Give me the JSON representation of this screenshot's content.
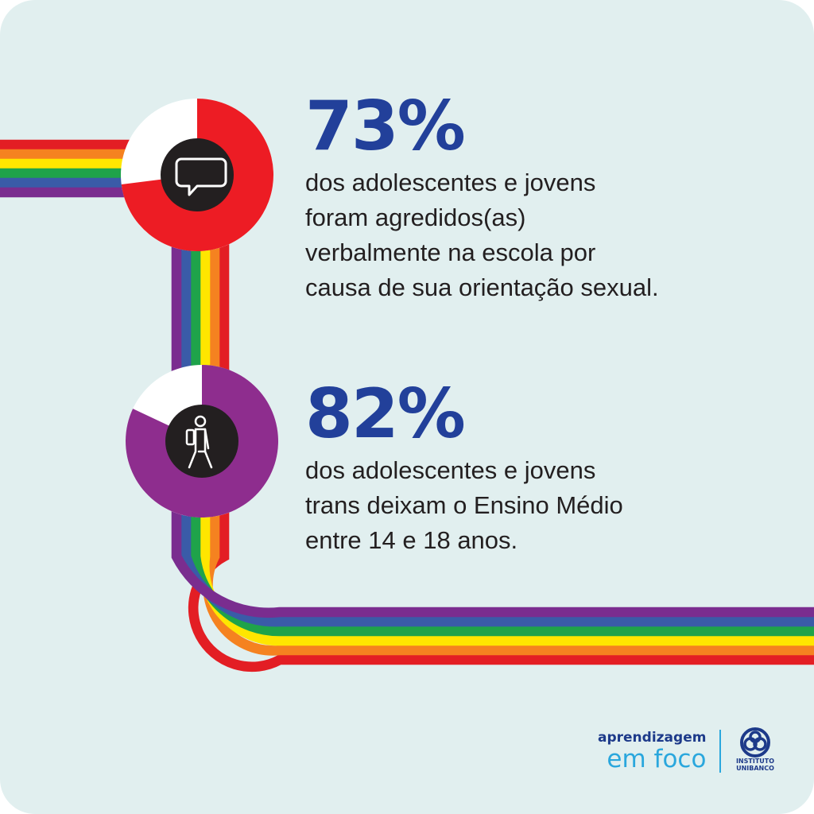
{
  "chart_data": [
    {
      "type": "pie",
      "value": 73,
      "label": "73%",
      "description": "dos adolescentes e jovens\nforam agredidos(as)\nverbalmente na escola por\ncausa de sua orientação sexual.",
      "fill_color": "#ed1c24",
      "rest_color": "#ffffff",
      "icon": "speech-bubble-icon"
    },
    {
      "type": "pie",
      "value": 82,
      "label": "82%",
      "description": "dos adolescentes e jovens\ntrans deixam o Ensino Médio\nentre 14 e 18 anos.",
      "fill_color": "#8e2d8e",
      "rest_color": "#ffffff",
      "icon": "student-walking-icon"
    }
  ],
  "colors": {
    "background": "#e1efef",
    "number": "#22409a",
    "text": "#231f20",
    "icon_disc": "#231f20",
    "rainbow": [
      "#e31e24",
      "#f58220",
      "#ffe600",
      "#1fa34a",
      "#3a5ba8",
      "#7a2d8f"
    ]
  },
  "brand": {
    "line1": "aprendizagem",
    "line2": "em foco",
    "logo_line1": "INSTITUTO",
    "logo_line2": "UNIBANCO",
    "logo_icon": "instituto-unibanco-logo-icon"
  }
}
